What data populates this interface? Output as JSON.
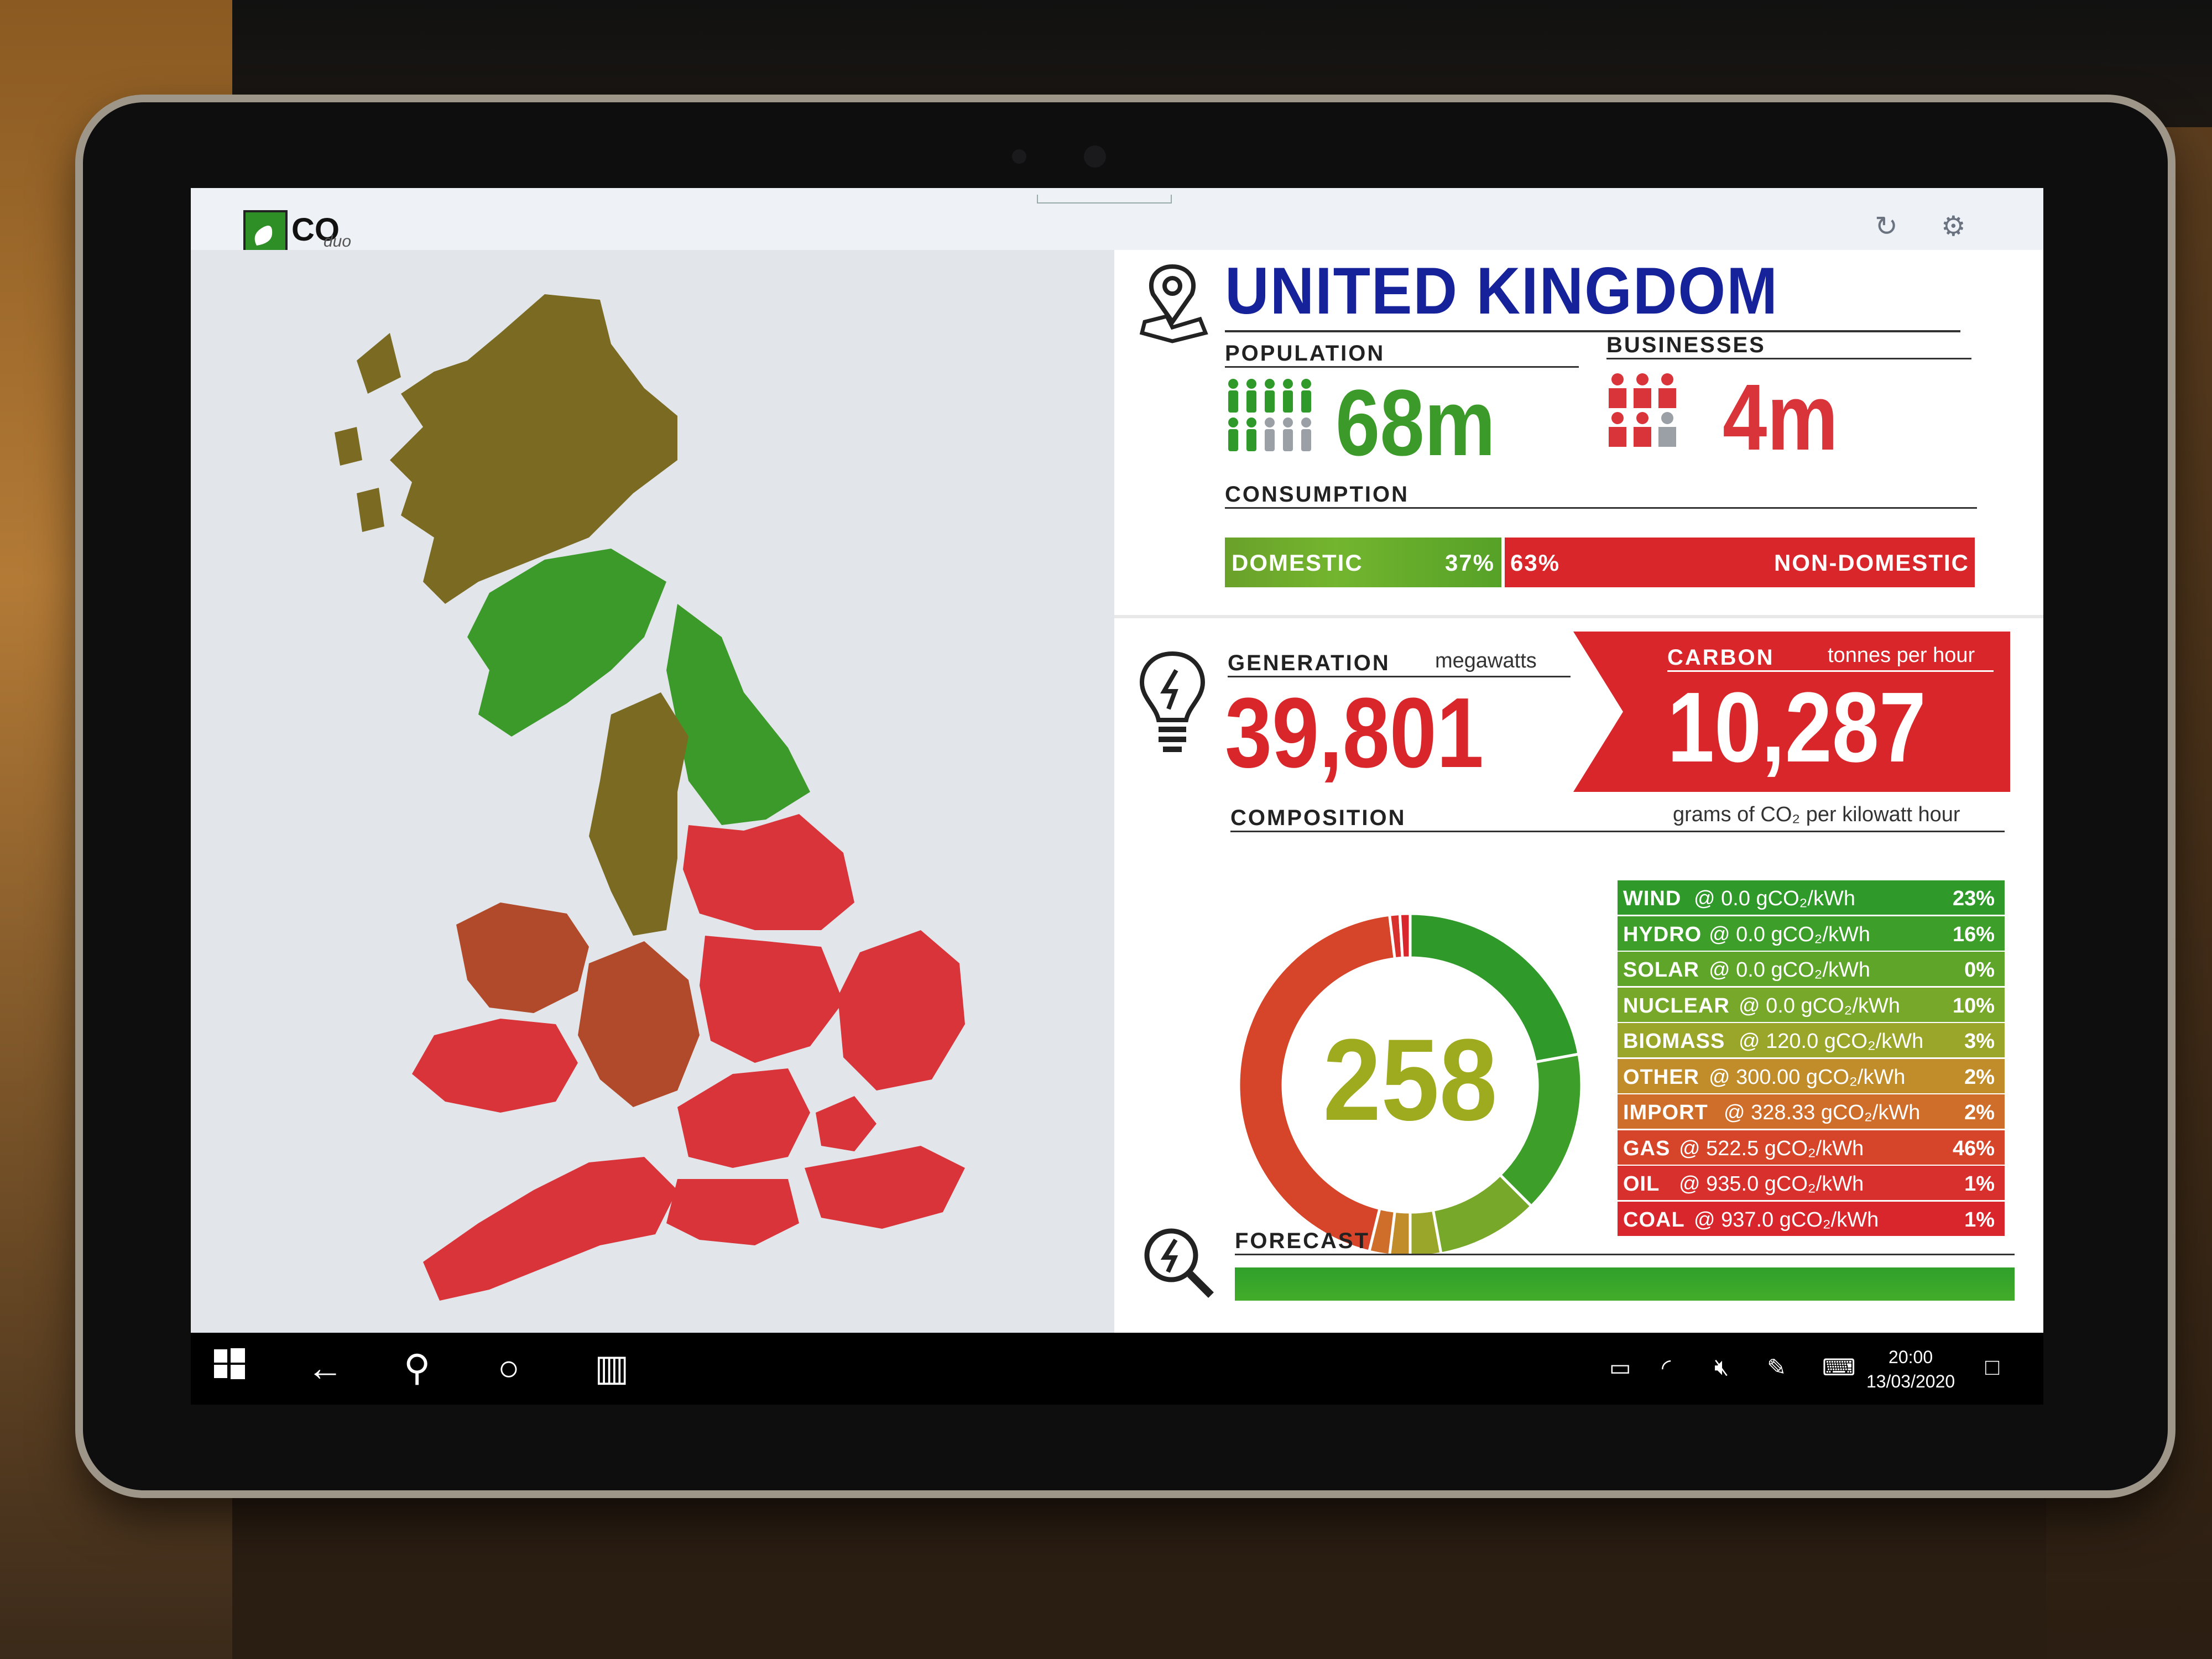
{
  "app": {
    "logo_text": "CO",
    "logo_sub": "duo"
  },
  "country": {
    "name": "UNITED KINGDOM"
  },
  "population": {
    "label": "POPULATION",
    "value": "68m"
  },
  "businesses": {
    "label": "BUSINESSES",
    "value": "4m"
  },
  "consumption": {
    "label": "CONSUMPTION",
    "domestic_label": "DOMESTIC",
    "domestic_pct": "37%",
    "non_domestic_pct": "63%",
    "non_domestic_label": "NON-DOMESTIC",
    "domestic_fraction": 0.37
  },
  "generation": {
    "label": "GENERATION",
    "unit": "megawatts",
    "value": "39,801"
  },
  "carbon": {
    "label": "CARBON",
    "unit": "tonnes per hour",
    "value": "10,287"
  },
  "composition": {
    "label": "COMPOSITION",
    "unit": "grams of CO₂ per kilowatt hour",
    "intensity": "258",
    "sources": [
      {
        "name": "WIND",
        "rate": "@ 0.0 gCO₂/kWh",
        "pct": "23%",
        "value": 23,
        "color": "#2f9a2a"
      },
      {
        "name": "HYDRO",
        "rate": "@ 0.0 gCO₂/kWh",
        "pct": "16%",
        "value": 16,
        "color": "#3d9e2a"
      },
      {
        "name": "SOLAR",
        "rate": "@ 0.0 gCO₂/kWh",
        "pct": "0%",
        "value": 0,
        "color": "#5ea52a"
      },
      {
        "name": "NUCLEAR",
        "rate": "@ 0.0 gCO₂/kWh",
        "pct": "10%",
        "value": 10,
        "color": "#78a82a"
      },
      {
        "name": "BIOMASS",
        "rate": "@ 120.0 gCO₂/kWh",
        "pct": "3%",
        "value": 3,
        "color": "#9aa62a"
      },
      {
        "name": "OTHER",
        "rate": "@ 300.00 gCO₂/kWh",
        "pct": "2%",
        "value": 2,
        "color": "#c08d2a"
      },
      {
        "name": "IMPORT",
        "rate": "@ 328.33 gCO₂/kWh",
        "pct": "2%",
        "value": 2,
        "color": "#cf6e2a"
      },
      {
        "name": "GAS",
        "rate": "@ 522.5 gCO₂/kWh",
        "pct": "46%",
        "value": 46,
        "color": "#d6452a"
      },
      {
        "name": "OIL",
        "rate": "@ 935.0 gCO₂/kWh",
        "pct": "1%",
        "value": 1,
        "color": "#d8302c"
      },
      {
        "name": "COAL",
        "rate": "@ 937.0 gCO₂/kWh",
        "pct": "1%",
        "value": 1,
        "color": "#d8262c"
      }
    ]
  },
  "forecast": {
    "label": "FORECAST"
  },
  "taskbar": {
    "time": "20:00",
    "date": "13/03/2020"
  },
  "map_colors": {
    "olive": "#7a6a22",
    "green": "#3b9a2a",
    "red": "#d8343a",
    "brown_red": "#b04a2a"
  }
}
